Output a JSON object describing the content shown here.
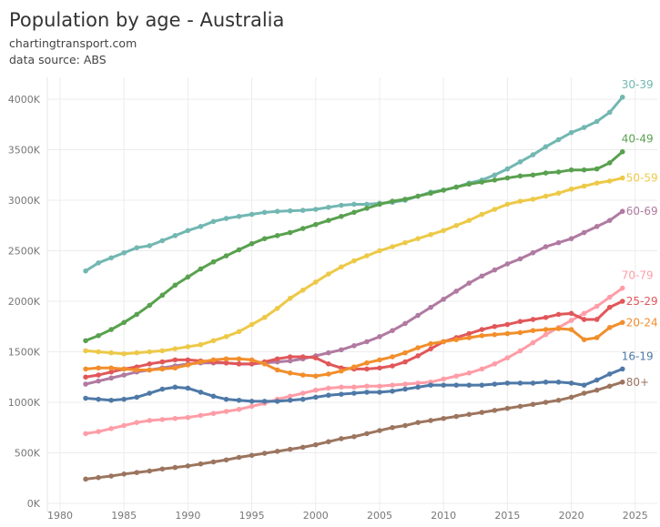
{
  "header": {
    "title": "Population by age - Australia",
    "subtitle1": "chartingtransport.com",
    "subtitle2": "data source: ABS"
  },
  "chart_data": {
    "type": "line",
    "title": "Population by age - Australia",
    "xlabel": "",
    "ylabel": "",
    "xlim": [
      1978,
      2027
    ],
    "ylim": [
      -100,
      4200
    ],
    "x_ticks": [
      1980,
      1985,
      1990,
      1995,
      2000,
      2005,
      2010,
      2015,
      2020,
      2025
    ],
    "y_ticks": [
      0,
      500,
      1000,
      1500,
      2000,
      2500,
      3000,
      3500,
      4000
    ],
    "y_tick_labels": [
      "0K",
      "500K",
      "1000K",
      "1500K",
      "2000K",
      "2500K",
      "3000K",
      "3500K",
      "4000K"
    ],
    "grid": true,
    "legend": "direct-labels-right",
    "x": [
      1982,
      1983,
      1984,
      1985,
      1986,
      1987,
      1988,
      1989,
      1990,
      1991,
      1992,
      1993,
      1994,
      1995,
      1996,
      1997,
      1998,
      1999,
      2000,
      2001,
      2002,
      2003,
      2004,
      2005,
      2006,
      2007,
      2008,
      2009,
      2010,
      2011,
      2012,
      2013,
      2014,
      2015,
      2016,
      2017,
      2018,
      2019,
      2020,
      2021,
      2022,
      2023,
      2024
    ],
    "series": [
      {
        "name": "30-39",
        "color": "#72b7b2",
        "values": [
          2300,
          2380,
          2430,
          2480,
          2530,
          2550,
          2600,
          2650,
          2700,
          2740,
          2790,
          2820,
          2840,
          2860,
          2880,
          2890,
          2895,
          2900,
          2910,
          2930,
          2950,
          2960,
          2960,
          2970,
          2980,
          3000,
          3040,
          3080,
          3100,
          3130,
          3170,
          3200,
          3250,
          3310,
          3380,
          3450,
          3530,
          3600,
          3670,
          3720,
          3780,
          3870,
          4020
        ]
      },
      {
        "name": "40-49",
        "color": "#59a14f",
        "values": [
          1610,
          1660,
          1720,
          1790,
          1870,
          1960,
          2060,
          2160,
          2240,
          2320,
          2390,
          2450,
          2510,
          2570,
          2620,
          2650,
          2680,
          2720,
          2760,
          2800,
          2840,
          2880,
          2920,
          2960,
          2990,
          3010,
          3040,
          3070,
          3100,
          3130,
          3160,
          3180,
          3200,
          3220,
          3240,
          3250,
          3270,
          3280,
          3300,
          3300,
          3310,
          3370,
          3480
        ]
      },
      {
        "name": "50-59",
        "color": "#edc948",
        "values": [
          1510,
          1500,
          1490,
          1480,
          1490,
          1500,
          1510,
          1530,
          1550,
          1570,
          1610,
          1650,
          1700,
          1770,
          1840,
          1930,
          2030,
          2110,
          2190,
          2270,
          2340,
          2400,
          2450,
          2500,
          2540,
          2580,
          2620,
          2660,
          2700,
          2750,
          2800,
          2860,
          2910,
          2960,
          2990,
          3010,
          3040,
          3070,
          3110,
          3140,
          3170,
          3190,
          3220
        ]
      },
      {
        "name": "60-69",
        "color": "#b07aa1",
        "values": [
          1180,
          1210,
          1240,
          1270,
          1300,
          1320,
          1340,
          1360,
          1380,
          1390,
          1390,
          1390,
          1380,
          1380,
          1390,
          1400,
          1410,
          1430,
          1460,
          1490,
          1520,
          1560,
          1600,
          1650,
          1710,
          1780,
          1860,
          1940,
          2020,
          2100,
          2180,
          2250,
          2310,
          2370,
          2420,
          2480,
          2540,
          2580,
          2620,
          2680,
          2740,
          2800,
          2890
        ]
      },
      {
        "name": "70-79",
        "color": "#ff9da7",
        "values": [
          690,
          710,
          740,
          770,
          800,
          820,
          830,
          840,
          850,
          870,
          890,
          910,
          930,
          960,
          990,
          1030,
          1060,
          1090,
          1120,
          1140,
          1150,
          1150,
          1160,
          1160,
          1170,
          1180,
          1190,
          1200,
          1230,
          1260,
          1290,
          1330,
          1380,
          1440,
          1510,
          1590,
          1670,
          1740,
          1810,
          1880,
          1950,
          2040,
          2130
        ]
      },
      {
        "name": "25-29",
        "color": "#e15759",
        "values": [
          1250,
          1270,
          1300,
          1330,
          1350,
          1380,
          1400,
          1420,
          1420,
          1410,
          1400,
          1390,
          1380,
          1380,
          1400,
          1430,
          1450,
          1450,
          1440,
          1380,
          1340,
          1330,
          1330,
          1340,
          1360,
          1400,
          1460,
          1530,
          1600,
          1640,
          1680,
          1720,
          1750,
          1770,
          1800,
          1820,
          1840,
          1870,
          1880,
          1820,
          1820,
          1940,
          2000
        ]
      },
      {
        "name": "20-24",
        "color": "#f28e2b",
        "values": [
          1330,
          1340,
          1340,
          1330,
          1320,
          1320,
          1330,
          1340,
          1370,
          1400,
          1420,
          1430,
          1430,
          1420,
          1380,
          1320,
          1290,
          1270,
          1260,
          1280,
          1310,
          1350,
          1390,
          1420,
          1450,
          1490,
          1540,
          1580,
          1600,
          1620,
          1640,
          1660,
          1670,
          1680,
          1690,
          1710,
          1720,
          1730,
          1720,
          1620,
          1640,
          1740,
          1790
        ]
      },
      {
        "name": "16-19",
        "color": "#4e79a7",
        "values": [
          1040,
          1030,
          1020,
          1030,
          1050,
          1090,
          1130,
          1150,
          1140,
          1100,
          1060,
          1030,
          1020,
          1010,
          1010,
          1010,
          1020,
          1030,
          1050,
          1070,
          1080,
          1090,
          1100,
          1100,
          1110,
          1130,
          1150,
          1170,
          1170,
          1170,
          1170,
          1170,
          1180,
          1190,
          1190,
          1190,
          1200,
          1200,
          1190,
          1170,
          1220,
          1280,
          1330
        ]
      },
      {
        "name": "80+",
        "color": "#9c755f",
        "values": [
          240,
          255,
          270,
          290,
          305,
          320,
          340,
          355,
          370,
          390,
          410,
          430,
          455,
          475,
          495,
          515,
          535,
          555,
          580,
          610,
          640,
          660,
          690,
          720,
          750,
          770,
          800,
          820,
          840,
          860,
          880,
          900,
          920,
          940,
          960,
          980,
          1000,
          1020,
          1050,
          1090,
          1120,
          1160,
          1200
        ]
      }
    ]
  }
}
